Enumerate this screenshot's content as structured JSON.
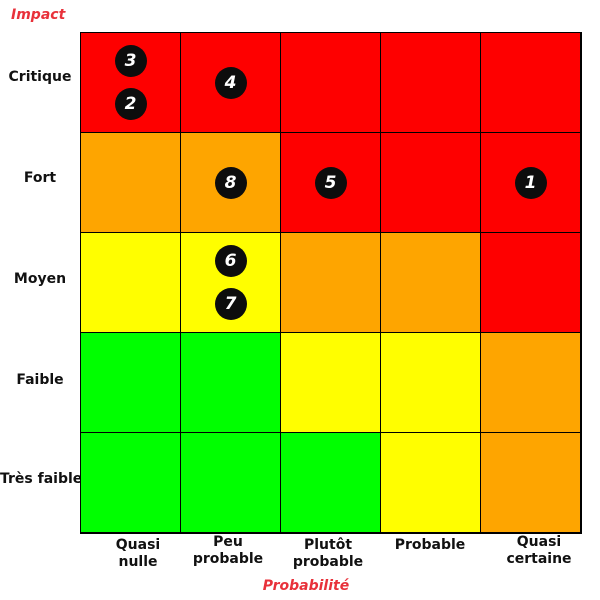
{
  "y_axis_title": "Impact",
  "x_axis_title": "Probabilité",
  "impact_levels": [
    "Critique",
    "Fort",
    "Moyen",
    "Faible",
    "Très faible"
  ],
  "probability_levels": [
    [
      "Quasi",
      "nulle"
    ],
    [
      "Peu",
      "probable"
    ],
    [
      "Plutôt",
      "probable"
    ],
    [
      "Probable"
    ],
    [
      "Quasi",
      "certaine"
    ]
  ],
  "colors": {
    "red": "#fe0000",
    "orange": "#fea500",
    "yellow": "#fffe00",
    "green": "#00ff00",
    "axis_title": "#e8313a",
    "marker": "#0d0d0d"
  },
  "matrix": [
    [
      "red",
      "red",
      "red",
      "red",
      "red"
    ],
    [
      "orange",
      "orange",
      "red",
      "red",
      "red"
    ],
    [
      "yellow",
      "yellow",
      "orange",
      "orange",
      "red"
    ],
    [
      "green",
      "green",
      "yellow",
      "yellow",
      "orange"
    ],
    [
      "green",
      "green",
      "green",
      "yellow",
      "orange"
    ]
  ],
  "risks": [
    {
      "label": "3",
      "impact": "Critique",
      "probability": "Quasi nulle"
    },
    {
      "label": "2",
      "impact": "Critique",
      "probability": "Quasi nulle"
    },
    {
      "label": "4",
      "impact": "Critique",
      "probability": "Peu probable"
    },
    {
      "label": "8",
      "impact": "Fort",
      "probability": "Peu probable"
    },
    {
      "label": "5",
      "impact": "Fort",
      "probability": "Plutôt probable"
    },
    {
      "label": "1",
      "impact": "Fort",
      "probability": "Quasi certaine"
    },
    {
      "label": "6",
      "impact": "Moyen",
      "probability": "Peu probable"
    },
    {
      "label": "7",
      "impact": "Moyen",
      "probability": "Peu probable"
    }
  ]
}
